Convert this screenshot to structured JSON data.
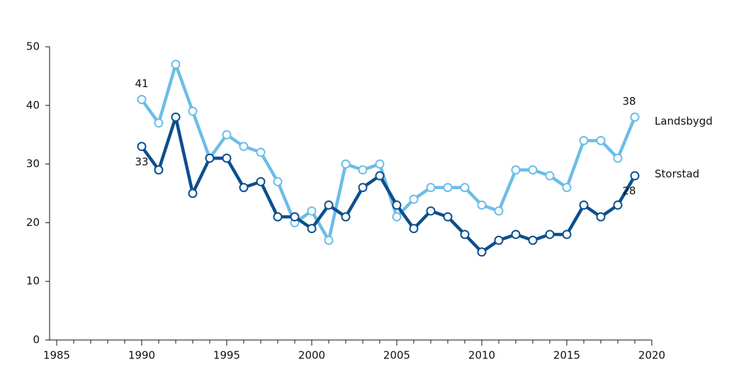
{
  "chart_data": {
    "type": "line",
    "x": [
      1990,
      1991,
      1992,
      1993,
      1994,
      1995,
      1996,
      1997,
      1998,
      1999,
      2000,
      2001,
      2002,
      2003,
      2004,
      2005,
      2006,
      2007,
      2008,
      2009,
      2010,
      2011,
      2012,
      2013,
      2014,
      2015,
      2016,
      2017,
      2018,
      2019
    ],
    "series": [
      {
        "name": "Landsbygd",
        "color": "#6cbde8",
        "values": [
          41,
          37,
          47,
          39,
          31,
          35,
          33,
          32,
          27,
          20,
          22,
          17,
          30,
          29,
          30,
          21,
          24,
          26,
          26,
          26,
          23,
          22,
          29,
          29,
          28,
          26,
          34,
          34,
          31,
          38
        ]
      },
      {
        "name": "Storstad",
        "color": "#0b4f8d",
        "values": [
          33,
          29,
          38,
          25,
          31,
          31,
          26,
          27,
          21,
          21,
          19,
          23,
          21,
          26,
          28,
          23,
          19,
          22,
          21,
          18,
          15,
          17,
          18,
          17,
          18,
          18,
          23,
          21,
          23,
          28
        ]
      }
    ],
    "xlim": [
      1985,
      2020
    ],
    "xticks": [
      1985,
      1990,
      1995,
      2000,
      2005,
      2010,
      2015,
      2020
    ],
    "xminorticks": [
      1986,
      1987,
      1988,
      1989,
      1991,
      1992,
      1993,
      1994,
      1996,
      1997,
      1998,
      1999,
      2001,
      2002,
      2003,
      2004,
      2006,
      2007,
      2008,
      2009,
      2011,
      2012,
      2013,
      2014,
      2016,
      2017,
      2018,
      2019
    ],
    "ylim": [
      0,
      50
    ],
    "yticks": [
      0,
      10,
      20,
      30,
      40,
      50
    ]
  }
}
